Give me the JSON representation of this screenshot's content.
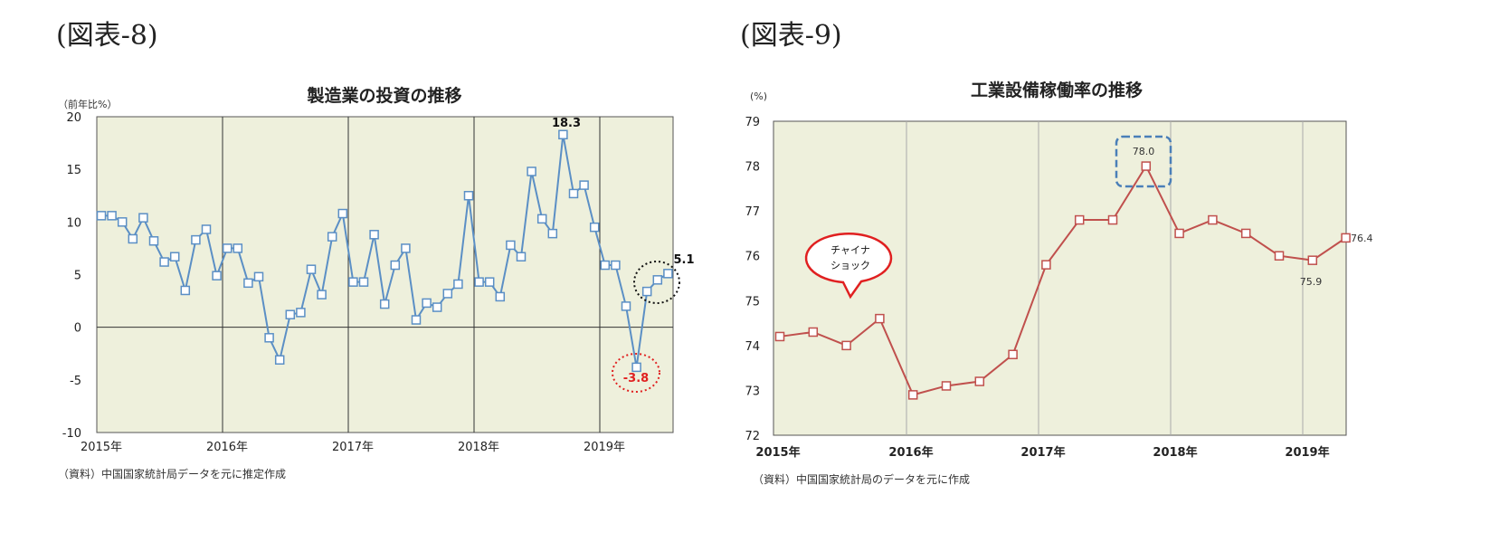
{
  "figures": [
    {
      "label": "(図表-8)",
      "source": "（資料）中国国家統計局データを元に推定作成",
      "chart_data": {
        "type": "line",
        "title": "製造業の投資の推移",
        "ylabel": "（前年比%）",
        "ylim": [
          -10,
          20
        ],
        "yticks": [
          -10,
          -5,
          0,
          5,
          10,
          15,
          20
        ],
        "xlabels": [
          "2015年",
          "2016年",
          "2017年",
          "2018年",
          "2019年"
        ],
        "grid": true,
        "color": "#5b8fc5",
        "background": "#eef0dc",
        "series": [
          {
            "values": [
              10.6,
              10.6,
              10.0,
              8.4,
              10.4,
              8.2,
              6.2,
              6.7,
              3.5,
              8.3,
              9.3,
              4.9,
              7.5,
              7.5,
              4.2,
              4.8,
              -1.0,
              -3.1,
              1.2,
              1.4,
              5.5,
              3.1,
              8.6,
              10.8,
              4.3,
              4.3,
              8.8,
              2.2,
              5.9,
              7.5,
              0.7,
              2.3,
              1.9,
              3.2,
              4.1,
              12.5,
              4.3,
              4.3,
              2.9,
              7.8,
              6.7,
              14.8,
              10.3,
              8.9,
              18.3,
              12.7,
              13.5,
              9.5,
              5.9,
              5.9,
              2.0,
              -3.8,
              3.4,
              4.5,
              5.1
            ]
          }
        ],
        "annotations": [
          {
            "text": "18.3"
          },
          {
            "text": "5.1"
          },
          {
            "text": "-3.8"
          }
        ]
      }
    },
    {
      "label": "(図表-9)",
      "source": "（資料）中国国家統計局のデータを元に作成",
      "chart_data": {
        "type": "line",
        "title": "工業設備稼働率の推移",
        "ylabel": "(%)",
        "ylim": [
          72,
          79
        ],
        "yticks": [
          72,
          73,
          74,
          75,
          76,
          77,
          78,
          79
        ],
        "xlabels": [
          "2015年",
          "2016年",
          "2017年",
          "2018年",
          "2019年"
        ],
        "grid": true,
        "color": "#c0504d",
        "background": "#eef0dc",
        "series": [
          {
            "values": [
              74.2,
              74.3,
              74.0,
              74.6,
              72.9,
              73.1,
              73.2,
              73.8,
              75.8,
              76.8,
              76.8,
              78.0,
              76.5,
              76.8,
              76.5,
              76.0,
              75.9,
              76.4
            ]
          }
        ],
        "annotations": [
          {
            "text": "78.0"
          },
          {
            "text": "75.9"
          },
          {
            "text": "76.4"
          },
          {
            "text": "チャイナ"
          },
          {
            "text": "ショック"
          }
        ]
      }
    }
  ]
}
